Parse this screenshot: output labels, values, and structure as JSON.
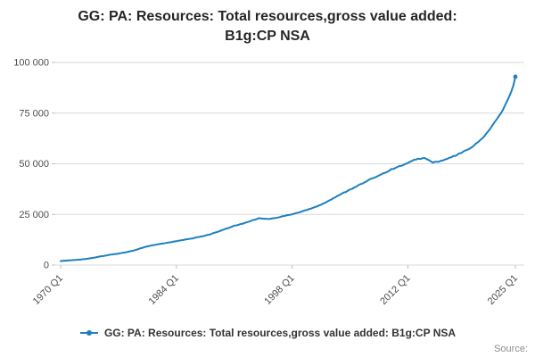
{
  "title": "GG: PA: Resources: Total resources,gross value added: B1g:CP NSA",
  "legend": {
    "label": "GG: PA: Resources: Total resources,gross value added: B1g:CP NSA"
  },
  "source_label": "Source:",
  "colors": {
    "line": "#1d7fbf",
    "grid": "#d9d9d9",
    "axis": "#bfbfbf",
    "tick_label": "#4d4d4d",
    "title": "#262626"
  },
  "chart_data": {
    "type": "line",
    "title": "GG: PA: Resources: Total resources,gross value added: B1g:CP NSA",
    "xlabel": "",
    "ylabel": "",
    "xlim": [
      1970,
      2025
    ],
    "ylim": [
      0,
      100000
    ],
    "grid": "horizontal",
    "legend_position": "bottom",
    "x_ticks": [
      "1970 Q1",
      "1984 Q1",
      "1998 Q1",
      "2012 Q1",
      "2025 Q1"
    ],
    "x_tick_years": [
      1970,
      1984,
      1998,
      2012,
      2025
    ],
    "y_ticks": [
      0,
      25000,
      50000,
      75000,
      100000
    ],
    "y_tick_labels": [
      "0",
      "25 000",
      "50 000",
      "75 000",
      "100 000"
    ],
    "series": [
      {
        "name": "GG: PA: Resources: Total resources,gross value added: B1g:CP NSA",
        "points": [
          [
            1970,
            2000
          ],
          [
            1971,
            2300
          ],
          [
            1972,
            2600
          ],
          [
            1973,
            3000
          ],
          [
            1974,
            3600
          ],
          [
            1975,
            4400
          ],
          [
            1976,
            5100
          ],
          [
            1977,
            5700
          ],
          [
            1978,
            6400
          ],
          [
            1979,
            7400
          ],
          [
            1980,
            8700
          ],
          [
            1981,
            9700
          ],
          [
            1982,
            10400
          ],
          [
            1983,
            11100
          ],
          [
            1984,
            11800
          ],
          [
            1985,
            12500
          ],
          [
            1986,
            13200
          ],
          [
            1987,
            14100
          ],
          [
            1988,
            15100
          ],
          [
            1989,
            16400
          ],
          [
            1990,
            17900
          ],
          [
            1991,
            19400
          ],
          [
            1992,
            20400
          ],
          [
            1993,
            21800
          ],
          [
            1994,
            23200
          ],
          [
            1995,
            22700
          ],
          [
            1996,
            23200
          ],
          [
            1997,
            24200
          ],
          [
            1998,
            25100
          ],
          [
            1999,
            26200
          ],
          [
            2000,
            27600
          ],
          [
            2001,
            29000
          ],
          [
            2002,
            30800
          ],
          [
            2003,
            33000
          ],
          [
            2004,
            35200
          ],
          [
            2005,
            37300
          ],
          [
            2006,
            39300
          ],
          [
            2007,
            41300
          ],
          [
            2008,
            43400
          ],
          [
            2009,
            45200
          ],
          [
            2010,
            47200
          ],
          [
            2011,
            48800
          ],
          [
            2012,
            50300
          ],
          [
            2013,
            52300
          ],
          [
            2014,
            52800
          ],
          [
            2015,
            50700
          ],
          [
            2016,
            51300
          ],
          [
            2017,
            52800
          ],
          [
            2018,
            54500
          ],
          [
            2019,
            56500
          ],
          [
            2020,
            59000
          ],
          [
            2021,
            62500
          ],
          [
            2022,
            67500
          ],
          [
            2023,
            73500
          ],
          [
            2023.5,
            76500
          ],
          [
            2024,
            81000
          ],
          [
            2024.25,
            83000
          ],
          [
            2024.5,
            85500
          ],
          [
            2024.75,
            88500
          ],
          [
            2025,
            93000
          ]
        ]
      }
    ]
  }
}
